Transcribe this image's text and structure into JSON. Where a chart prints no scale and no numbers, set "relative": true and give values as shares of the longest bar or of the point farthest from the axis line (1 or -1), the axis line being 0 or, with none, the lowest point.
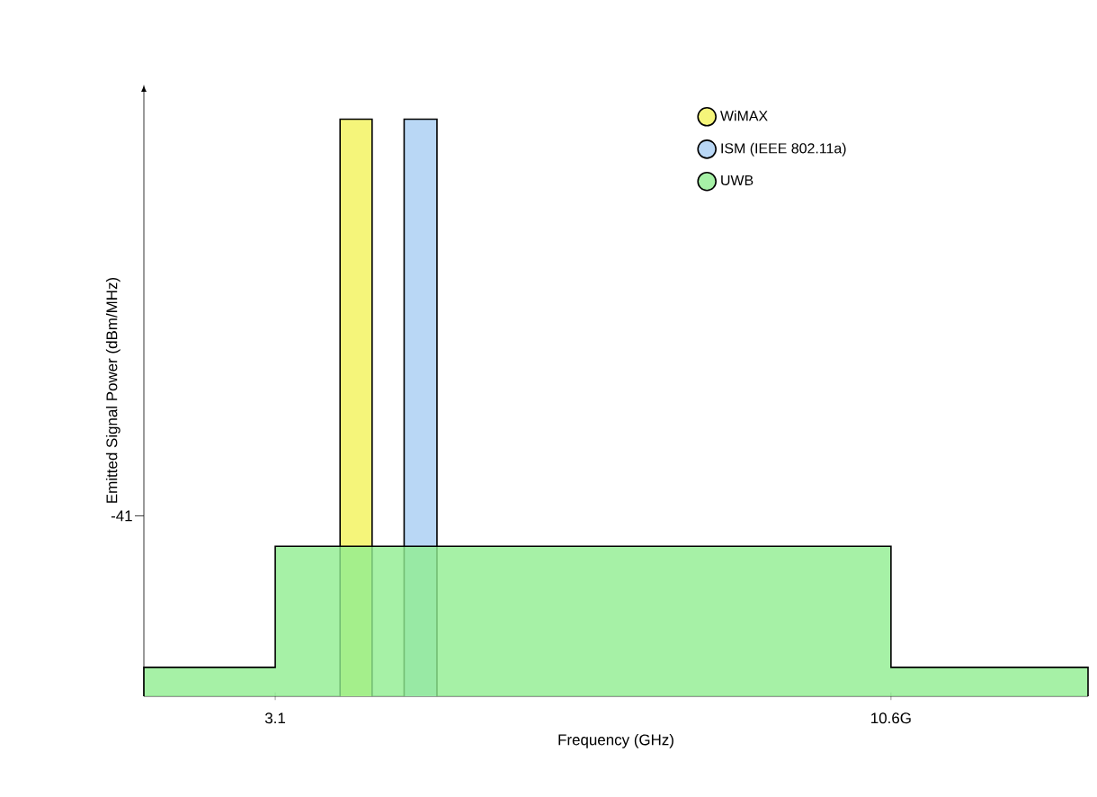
{
  "chart_data": {
    "type": "area",
    "relative": true,
    "xlabel": "Frequency (GHz)",
    "ylabel": "Emitted Signal Power (dBm/MHz)",
    "xlim": [
      1.5,
      13
    ],
    "xticks": [
      3.1,
      {
        "value": 10.6,
        "label": "10.6G"
      }
    ],
    "legend": "top right",
    "annotations": [
      "-41"
    ],
    "series": [
      {
        "name": "WiMAX",
        "color": "#f5f57a",
        "x": [
          3.89,
          3.89,
          4.28,
          4.28
        ],
        "values": [
          0,
          1,
          1,
          0
        ]
      },
      {
        "name": "ISM (IEEE 802.11a)",
        "color": "#b9d7f5",
        "x": [
          4.67,
          4.67,
          5.07,
          5.07
        ],
        "values": [
          0,
          1,
          1,
          0
        ]
      },
      {
        "name": "UWB",
        "color": "#90ee90",
        "x": [
          1.5,
          1.5,
          3.1,
          3.1,
          10.6,
          10.6,
          13,
          13
        ],
        "values": [
          0,
          0.05,
          0.05,
          0.26,
          0.26,
          0.05,
          0.05,
          0
        ]
      }
    ]
  }
}
